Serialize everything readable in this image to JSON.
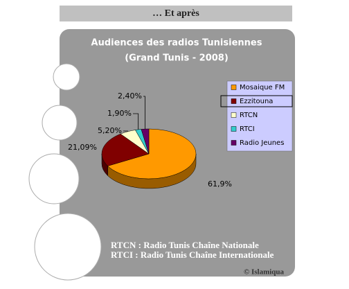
{
  "header": "… Et après",
  "chart_data": {
    "type": "pie3d",
    "title": "Audiences des radios Tunisiennes",
    "subtitle": "(Grand Tunis - 2008)",
    "categories": [
      "Mosaique FM",
      "Ezzitouna",
      "RTCN",
      "RTCI",
      "Radio Jeunes"
    ],
    "values": [
      61.9,
      21.09,
      5.2,
      1.9,
      2.4
    ],
    "value_labels": [
      "61,9%",
      "21,09%",
      "5,20%",
      "1,90%",
      "2,40%"
    ],
    "colors": [
      "#ff9900",
      "#800000",
      "#ffffcc",
      "#33cccc",
      "#660066"
    ],
    "legend": "right"
  },
  "notes": [
    "RTCN : Radio Tunis Chaîne Nationale",
    "RTCI : Radio Tunis Chaîne Internationale"
  ],
  "copyright": "© Islamiqua"
}
